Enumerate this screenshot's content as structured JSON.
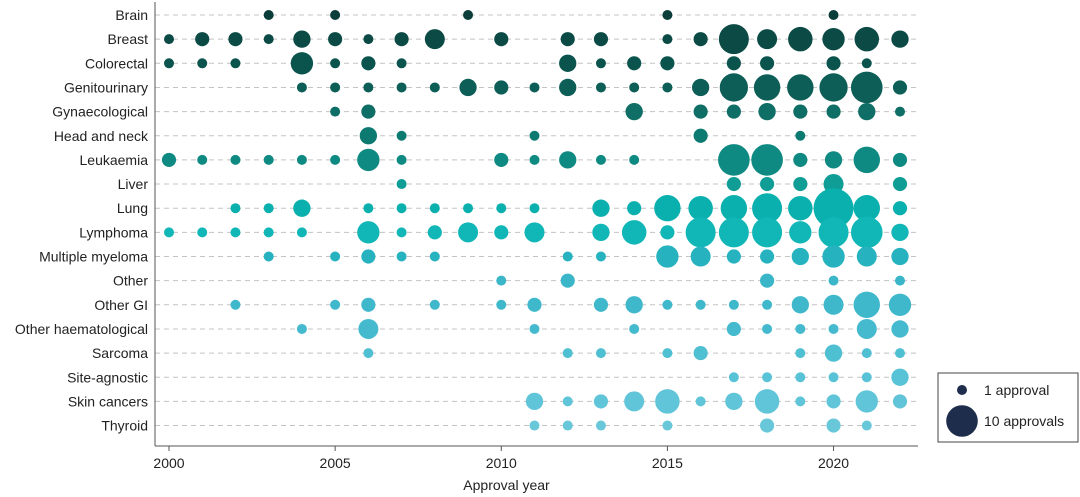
{
  "chart_data": {
    "type": "scatter",
    "subtype": "bubble",
    "xlabel": "Approval year",
    "xlim": [
      2000,
      2022
    ],
    "xticks": [
      2000,
      2005,
      2010,
      2015,
      2020
    ],
    "categories": [
      "Brain",
      "Breast",
      "Colorectal",
      "Genitourinary",
      "Gynaecological",
      "Head and neck",
      "Leukaemia",
      "Liver",
      "Lung",
      "Lymphoma",
      "Multiple myeloma",
      "Other",
      "Other GI",
      "Other haematological",
      "Sarcoma",
      "Site-agnostic",
      "Skin cancers",
      "Thyroid"
    ],
    "colors": [
      "#0b3d3a",
      "#0b4a45",
      "#0b544e",
      "#0d5e57",
      "#0f6e66",
      "#0d7a72",
      "#0f8a82",
      "#0f9d96",
      "#0ab0ae",
      "#11b6b6",
      "#26b3bf",
      "#3ab6c8",
      "#40b8cc",
      "#45bace",
      "#4fbfd2",
      "#58c2d6",
      "#60c5d8",
      "#68c8da"
    ],
    "legend": {
      "entries": [
        {
          "label": "1 approval",
          "value": 1
        },
        {
          "label": "10 approvals",
          "value": 10
        }
      ],
      "marker_color": "#1f2d4d",
      "placement": "bottom-right"
    },
    "grid": "horizontal dashed",
    "series": [
      {
        "category": "Brain",
        "points": [
          [
            2003,
            1
          ],
          [
            2005,
            1
          ],
          [
            2009,
            1
          ],
          [
            2015,
            1
          ],
          [
            2020,
            1
          ]
        ]
      },
      {
        "category": "Breast",
        "points": [
          [
            2000,
            1
          ],
          [
            2001,
            2
          ],
          [
            2002,
            2
          ],
          [
            2003,
            1
          ],
          [
            2004,
            3
          ],
          [
            2005,
            2
          ],
          [
            2006,
            1
          ],
          [
            2007,
            2
          ],
          [
            2008,
            4
          ],
          [
            2010,
            2
          ],
          [
            2012,
            2
          ],
          [
            2013,
            2
          ],
          [
            2015,
            1
          ],
          [
            2016,
            2
          ],
          [
            2017,
            9
          ],
          [
            2018,
            4
          ],
          [
            2019,
            6
          ],
          [
            2020,
            5
          ],
          [
            2021,
            6
          ],
          [
            2022,
            3
          ]
        ]
      },
      {
        "category": "Colorectal",
        "points": [
          [
            2000,
            1
          ],
          [
            2001,
            1
          ],
          [
            2002,
            1
          ],
          [
            2004,
            5
          ],
          [
            2005,
            1
          ],
          [
            2006,
            2
          ],
          [
            2007,
            1
          ],
          [
            2012,
            3
          ],
          [
            2013,
            1
          ],
          [
            2014,
            2
          ],
          [
            2015,
            2
          ],
          [
            2017,
            2
          ],
          [
            2018,
            2
          ],
          [
            2020,
            2
          ],
          [
            2021,
            1
          ]
        ]
      },
      {
        "category": "Genitourinary",
        "points": [
          [
            2004,
            1
          ],
          [
            2005,
            1
          ],
          [
            2006,
            1
          ],
          [
            2007,
            1
          ],
          [
            2008,
            1
          ],
          [
            2009,
            3
          ],
          [
            2010,
            2
          ],
          [
            2011,
            1
          ],
          [
            2012,
            3
          ],
          [
            2013,
            1
          ],
          [
            2014,
            1
          ],
          [
            2015,
            1
          ],
          [
            2016,
            3
          ],
          [
            2017,
            8
          ],
          [
            2018,
            7
          ],
          [
            2019,
            7
          ],
          [
            2020,
            8
          ],
          [
            2021,
            10
          ],
          [
            2022,
            2
          ]
        ]
      },
      {
        "category": "Gynaecological",
        "points": [
          [
            2005,
            1
          ],
          [
            2006,
            2
          ],
          [
            2014,
            3
          ],
          [
            2016,
            2
          ],
          [
            2017,
            2
          ],
          [
            2018,
            3
          ],
          [
            2019,
            2
          ],
          [
            2020,
            2
          ],
          [
            2021,
            3
          ],
          [
            2022,
            1
          ]
        ]
      },
      {
        "category": "Head and neck",
        "points": [
          [
            2006,
            3
          ],
          [
            2007,
            1
          ],
          [
            2011,
            1
          ],
          [
            2016,
            2
          ],
          [
            2019,
            1
          ]
        ]
      },
      {
        "category": "Leukaemia",
        "points": [
          [
            2000,
            2
          ],
          [
            2001,
            1
          ],
          [
            2002,
            1
          ],
          [
            2003,
            1
          ],
          [
            2004,
            1
          ],
          [
            2005,
            1
          ],
          [
            2006,
            5
          ],
          [
            2007,
            1
          ],
          [
            2010,
            2
          ],
          [
            2011,
            1
          ],
          [
            2012,
            3
          ],
          [
            2013,
            1
          ],
          [
            2014,
            1
          ],
          [
            2017,
            10
          ],
          [
            2018,
            10
          ],
          [
            2019,
            2
          ],
          [
            2020,
            3
          ],
          [
            2021,
            7
          ],
          [
            2022,
            2
          ]
        ]
      },
      {
        "category": "Liver",
        "points": [
          [
            2007,
            1
          ],
          [
            2017,
            2
          ],
          [
            2018,
            2
          ],
          [
            2019,
            2
          ],
          [
            2020,
            4
          ],
          [
            2022,
            2
          ]
        ]
      },
      {
        "category": "Lung",
        "points": [
          [
            2002,
            1
          ],
          [
            2003,
            1
          ],
          [
            2004,
            3
          ],
          [
            2006,
            1
          ],
          [
            2007,
            1
          ],
          [
            2008,
            1
          ],
          [
            2009,
            1
          ],
          [
            2010,
            1
          ],
          [
            2011,
            1
          ],
          [
            2013,
            3
          ],
          [
            2014,
            2
          ],
          [
            2015,
            7
          ],
          [
            2016,
            6
          ],
          [
            2017,
            7
          ],
          [
            2018,
            9
          ],
          [
            2019,
            6
          ],
          [
            2020,
            16
          ],
          [
            2021,
            7
          ],
          [
            2022,
            2
          ]
        ]
      },
      {
        "category": "Lymphoma",
        "points": [
          [
            2000,
            1
          ],
          [
            2001,
            1
          ],
          [
            2002,
            1
          ],
          [
            2003,
            1
          ],
          [
            2004,
            1
          ],
          [
            2006,
            5
          ],
          [
            2007,
            1
          ],
          [
            2008,
            2
          ],
          [
            2009,
            4
          ],
          [
            2010,
            2
          ],
          [
            2011,
            4
          ],
          [
            2013,
            3
          ],
          [
            2014,
            6
          ],
          [
            2015,
            2
          ],
          [
            2016,
            9
          ],
          [
            2017,
            9
          ],
          [
            2018,
            9
          ],
          [
            2019,
            5
          ],
          [
            2020,
            9
          ],
          [
            2021,
            10
          ],
          [
            2022,
            3
          ]
        ]
      },
      {
        "category": "Multiple myeloma",
        "points": [
          [
            2003,
            1
          ],
          [
            2005,
            1
          ],
          [
            2006,
            2
          ],
          [
            2007,
            1
          ],
          [
            2008,
            1
          ],
          [
            2012,
            1
          ],
          [
            2013,
            1
          ],
          [
            2015,
            5
          ],
          [
            2016,
            4
          ],
          [
            2017,
            2
          ],
          [
            2018,
            2
          ],
          [
            2019,
            3
          ],
          [
            2020,
            5
          ],
          [
            2021,
            4
          ],
          [
            2022,
            3
          ]
        ]
      },
      {
        "category": "Other",
        "points": [
          [
            2010,
            1
          ],
          [
            2012,
            2
          ],
          [
            2018,
            2
          ],
          [
            2020,
            1
          ],
          [
            2022,
            1
          ]
        ]
      },
      {
        "category": "Other GI",
        "points": [
          [
            2002,
            1
          ],
          [
            2005,
            1
          ],
          [
            2006,
            2
          ],
          [
            2008,
            1
          ],
          [
            2010,
            1
          ],
          [
            2011,
            2
          ],
          [
            2013,
            2
          ],
          [
            2014,
            3
          ],
          [
            2015,
            1
          ],
          [
            2016,
            1
          ],
          [
            2017,
            1
          ],
          [
            2018,
            1
          ],
          [
            2019,
            3
          ],
          [
            2020,
            4
          ],
          [
            2021,
            7
          ],
          [
            2022,
            5
          ]
        ]
      },
      {
        "category": "Other haematological",
        "points": [
          [
            2004,
            1
          ],
          [
            2006,
            4
          ],
          [
            2011,
            1
          ],
          [
            2014,
            1
          ],
          [
            2017,
            2
          ],
          [
            2018,
            1
          ],
          [
            2019,
            1
          ],
          [
            2020,
            1
          ],
          [
            2021,
            4
          ],
          [
            2022,
            3
          ]
        ]
      },
      {
        "category": "Sarcoma",
        "points": [
          [
            2006,
            1
          ],
          [
            2012,
            1
          ],
          [
            2013,
            1
          ],
          [
            2015,
            1
          ],
          [
            2016,
            2
          ],
          [
            2019,
            1
          ],
          [
            2020,
            3
          ],
          [
            2021,
            1
          ],
          [
            2022,
            1
          ]
        ]
      },
      {
        "category": "Site-agnostic",
        "points": [
          [
            2017,
            1
          ],
          [
            2018,
            1
          ],
          [
            2019,
            1
          ],
          [
            2020,
            1
          ],
          [
            2021,
            1
          ],
          [
            2022,
            3
          ]
        ]
      },
      {
        "category": "Skin cancers",
        "points": [
          [
            2011,
            3
          ],
          [
            2012,
            1
          ],
          [
            2013,
            2
          ],
          [
            2014,
            4
          ],
          [
            2015,
            6
          ],
          [
            2016,
            1
          ],
          [
            2017,
            3
          ],
          [
            2018,
            6
          ],
          [
            2019,
            1
          ],
          [
            2020,
            2
          ],
          [
            2021,
            5
          ],
          [
            2022,
            2
          ]
        ]
      },
      {
        "category": "Thyroid",
        "points": [
          [
            2011,
            1
          ],
          [
            2012,
            1
          ],
          [
            2013,
            1
          ],
          [
            2015,
            1
          ],
          [
            2018,
            2
          ],
          [
            2020,
            2
          ],
          [
            2021,
            1
          ]
        ]
      }
    ]
  }
}
